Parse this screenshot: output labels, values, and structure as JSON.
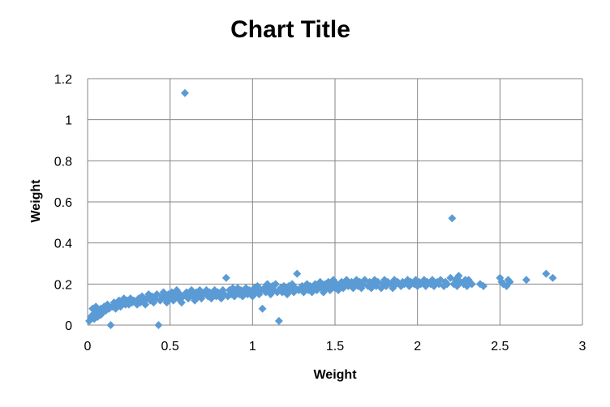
{
  "chart_data": {
    "type": "scatter",
    "title": "Chart Title",
    "xlabel": "Weight",
    "ylabel": "Weight",
    "xlim": [
      0,
      3
    ],
    "ylim": [
      0,
      1.2
    ],
    "x_ticks": [
      "0",
      "0.5",
      "1",
      "1.5",
      "2",
      "2.5",
      "3"
    ],
    "y_ticks": [
      "0",
      "0.2",
      "0.4",
      "0.6",
      "0.8",
      "1",
      "1.2"
    ],
    "grid": true,
    "legend": "none",
    "marker": "diamond",
    "color": "#5B9BD5",
    "series": [
      {
        "points": [
          [
            0.01,
            0.02
          ],
          [
            0.02,
            0.04
          ],
          [
            0.03,
            0.05
          ],
          [
            0.03,
            0.08
          ],
          [
            0.04,
            0.03
          ],
          [
            0.05,
            0.06
          ],
          [
            0.05,
            0.09
          ],
          [
            0.06,
            0.04
          ],
          [
            0.07,
            0.07
          ],
          [
            0.08,
            0.05
          ],
          [
            0.08,
            0.08
          ],
          [
            0.09,
            0.06
          ],
          [
            0.1,
            0.09
          ],
          [
            0.11,
            0.07
          ],
          [
            0.12,
            0.1
          ],
          [
            0.13,
            0.08
          ],
          [
            0.14,
            0.0
          ],
          [
            0.15,
            0.09
          ],
          [
            0.16,
            0.11
          ],
          [
            0.17,
            0.08
          ],
          [
            0.18,
            0.1
          ],
          [
            0.19,
            0.12
          ],
          [
            0.2,
            0.09
          ],
          [
            0.21,
            0.11
          ],
          [
            0.22,
            0.13
          ],
          [
            0.23,
            0.1
          ],
          [
            0.24,
            0.12
          ],
          [
            0.25,
            0.1
          ],
          [
            0.26,
            0.13
          ],
          [
            0.27,
            0.11
          ],
          [
            0.28,
            0.12
          ],
          [
            0.3,
            0.1
          ],
          [
            0.31,
            0.13
          ],
          [
            0.32,
            0.11
          ],
          [
            0.33,
            0.14
          ],
          [
            0.34,
            0.12
          ],
          [
            0.35,
            0.1
          ],
          [
            0.36,
            0.13
          ],
          [
            0.37,
            0.15
          ],
          [
            0.38,
            0.12
          ],
          [
            0.39,
            0.14
          ],
          [
            0.4,
            0.11
          ],
          [
            0.41,
            0.13
          ],
          [
            0.42,
            0.15
          ],
          [
            0.43,
            0.0
          ],
          [
            0.44,
            0.12
          ],
          [
            0.45,
            0.14
          ],
          [
            0.46,
            0.16
          ],
          [
            0.47,
            0.13
          ],
          [
            0.48,
            0.11
          ],
          [
            0.49,
            0.15
          ],
          [
            0.5,
            0.13
          ],
          [
            0.51,
            0.16
          ],
          [
            0.52,
            0.12
          ],
          [
            0.53,
            0.14
          ],
          [
            0.54,
            0.17
          ],
          [
            0.55,
            0.13
          ],
          [
            0.56,
            0.15
          ],
          [
            0.57,
            0.11
          ],
          [
            0.58,
            0.14
          ],
          [
            0.59,
            1.13
          ],
          [
            0.6,
            0.16
          ],
          [
            0.61,
            0.13
          ],
          [
            0.62,
            0.15
          ],
          [
            0.63,
            0.17
          ],
          [
            0.64,
            0.14
          ],
          [
            0.65,
            0.12
          ],
          [
            0.66,
            0.16
          ],
          [
            0.67,
            0.14
          ],
          [
            0.68,
            0.17
          ],
          [
            0.69,
            0.13
          ],
          [
            0.7,
            0.15
          ],
          [
            0.72,
            0.17
          ],
          [
            0.73,
            0.14
          ],
          [
            0.74,
            0.16
          ],
          [
            0.75,
            0.13
          ],
          [
            0.76,
            0.15
          ],
          [
            0.77,
            0.17
          ],
          [
            0.78,
            0.14
          ],
          [
            0.79,
            0.16
          ],
          [
            0.8,
            0.15
          ],
          [
            0.81,
            0.13
          ],
          [
            0.82,
            0.17
          ],
          [
            0.83,
            0.15
          ],
          [
            0.84,
            0.23
          ],
          [
            0.85,
            0.14
          ],
          [
            0.86,
            0.17
          ],
          [
            0.87,
            0.15
          ],
          [
            0.88,
            0.18
          ],
          [
            0.89,
            0.14
          ],
          [
            0.9,
            0.16
          ],
          [
            0.91,
            0.18
          ],
          [
            0.92,
            0.15
          ],
          [
            0.93,
            0.17
          ],
          [
            0.94,
            0.14
          ],
          [
            0.95,
            0.16
          ],
          [
            0.96,
            0.18
          ],
          [
            0.97,
            0.15
          ],
          [
            0.98,
            0.17
          ],
          [
            0.99,
            0.16
          ],
          [
            1.0,
            0.14
          ],
          [
            1.01,
            0.18
          ],
          [
            1.02,
            0.16
          ],
          [
            1.03,
            0.19
          ],
          [
            1.04,
            0.15
          ],
          [
            1.05,
            0.17
          ],
          [
            1.06,
            0.08
          ],
          [
            1.07,
            0.18
          ],
          [
            1.08,
            0.16
          ],
          [
            1.09,
            0.2
          ],
          [
            1.1,
            0.17
          ],
          [
            1.11,
            0.15
          ],
          [
            1.12,
            0.19
          ],
          [
            1.13,
            0.17
          ],
          [
            1.14,
            0.2
          ],
          [
            1.15,
            0.16
          ],
          [
            1.16,
            0.02
          ],
          [
            1.17,
            0.18
          ],
          [
            1.18,
            0.16
          ],
          [
            1.19,
            0.19
          ],
          [
            1.2,
            0.17
          ],
          [
            1.21,
            0.15
          ],
          [
            1.22,
            0.19
          ],
          [
            1.23,
            0.17
          ],
          [
            1.24,
            0.2
          ],
          [
            1.25,
            0.16
          ],
          [
            1.26,
            0.18
          ],
          [
            1.27,
            0.25
          ],
          [
            1.28,
            0.17
          ],
          [
            1.3,
            0.19
          ],
          [
            1.31,
            0.16
          ],
          [
            1.32,
            0.18
          ],
          [
            1.33,
            0.2
          ],
          [
            1.34,
            0.17
          ],
          [
            1.35,
            0.19
          ],
          [
            1.36,
            0.16
          ],
          [
            1.37,
            0.18
          ],
          [
            1.38,
            0.2
          ],
          [
            1.39,
            0.17
          ],
          [
            1.4,
            0.19
          ],
          [
            1.41,
            0.21
          ],
          [
            1.42,
            0.18
          ],
          [
            1.43,
            0.16
          ],
          [
            1.44,
            0.2
          ],
          [
            1.45,
            0.18
          ],
          [
            1.46,
            0.21
          ],
          [
            1.47,
            0.17
          ],
          [
            1.48,
            0.19
          ],
          [
            1.49,
            0.22
          ],
          [
            1.5,
            0.18
          ],
          [
            1.51,
            0.2
          ],
          [
            1.52,
            0.17
          ],
          [
            1.53,
            0.19
          ],
          [
            1.54,
            0.21
          ],
          [
            1.55,
            0.18
          ],
          [
            1.56,
            0.2
          ],
          [
            1.57,
            0.22
          ],
          [
            1.58,
            0.19
          ],
          [
            1.6,
            0.21
          ],
          [
            1.61,
            0.18
          ],
          [
            1.62,
            0.2
          ],
          [
            1.63,
            0.22
          ],
          [
            1.64,
            0.19
          ],
          [
            1.65,
            0.21
          ],
          [
            1.66,
            0.18
          ],
          [
            1.67,
            0.2
          ],
          [
            1.68,
            0.22
          ],
          [
            1.7,
            0.19
          ],
          [
            1.71,
            0.21
          ],
          [
            1.72,
            0.18
          ],
          [
            1.73,
            0.2
          ],
          [
            1.74,
            0.22
          ],
          [
            1.75,
            0.19
          ],
          [
            1.76,
            0.21
          ],
          [
            1.78,
            0.18
          ],
          [
            1.79,
            0.2
          ],
          [
            1.8,
            0.22
          ],
          [
            1.81,
            0.19
          ],
          [
            1.82,
            0.21
          ],
          [
            1.84,
            0.2
          ],
          [
            1.85,
            0.18
          ],
          [
            1.86,
            0.22
          ],
          [
            1.87,
            0.2
          ],
          [
            1.88,
            0.21
          ],
          [
            1.9,
            0.19
          ],
          [
            1.91,
            0.21
          ],
          [
            1.92,
            0.2
          ],
          [
            1.94,
            0.22
          ],
          [
            1.95,
            0.19
          ],
          [
            1.96,
            0.21
          ],
          [
            1.98,
            0.2
          ],
          [
            1.99,
            0.22
          ],
          [
            2.0,
            0.19
          ],
          [
            2.01,
            0.21
          ],
          [
            2.02,
            0.2
          ],
          [
            2.04,
            0.22
          ],
          [
            2.05,
            0.19
          ],
          [
            2.06,
            0.21
          ],
          [
            2.08,
            0.2
          ],
          [
            2.09,
            0.22
          ],
          [
            2.1,
            0.19
          ],
          [
            2.12,
            0.21
          ],
          [
            2.13,
            0.2
          ],
          [
            2.14,
            0.22
          ],
          [
            2.16,
            0.19
          ],
          [
            2.17,
            0.21
          ],
          [
            2.18,
            0.2
          ],
          [
            2.2,
            0.23
          ],
          [
            2.21,
            0.52
          ],
          [
            2.22,
            0.2
          ],
          [
            2.23,
            0.22
          ],
          [
            2.24,
            0.19
          ],
          [
            2.25,
            0.24
          ],
          [
            2.26,
            0.21
          ],
          [
            2.28,
            0.2
          ],
          [
            2.29,
            0.22
          ],
          [
            2.3,
            0.19
          ],
          [
            2.31,
            0.22
          ],
          [
            2.33,
            0.2
          ],
          [
            2.38,
            0.2
          ],
          [
            2.4,
            0.19
          ],
          [
            2.5,
            0.23
          ],
          [
            2.51,
            0.21
          ],
          [
            2.52,
            0.2
          ],
          [
            2.54,
            0.19
          ],
          [
            2.55,
            0.22
          ],
          [
            2.56,
            0.21
          ],
          [
            2.66,
            0.22
          ],
          [
            2.78,
            0.25
          ],
          [
            2.82,
            0.23
          ]
        ]
      }
    ]
  }
}
